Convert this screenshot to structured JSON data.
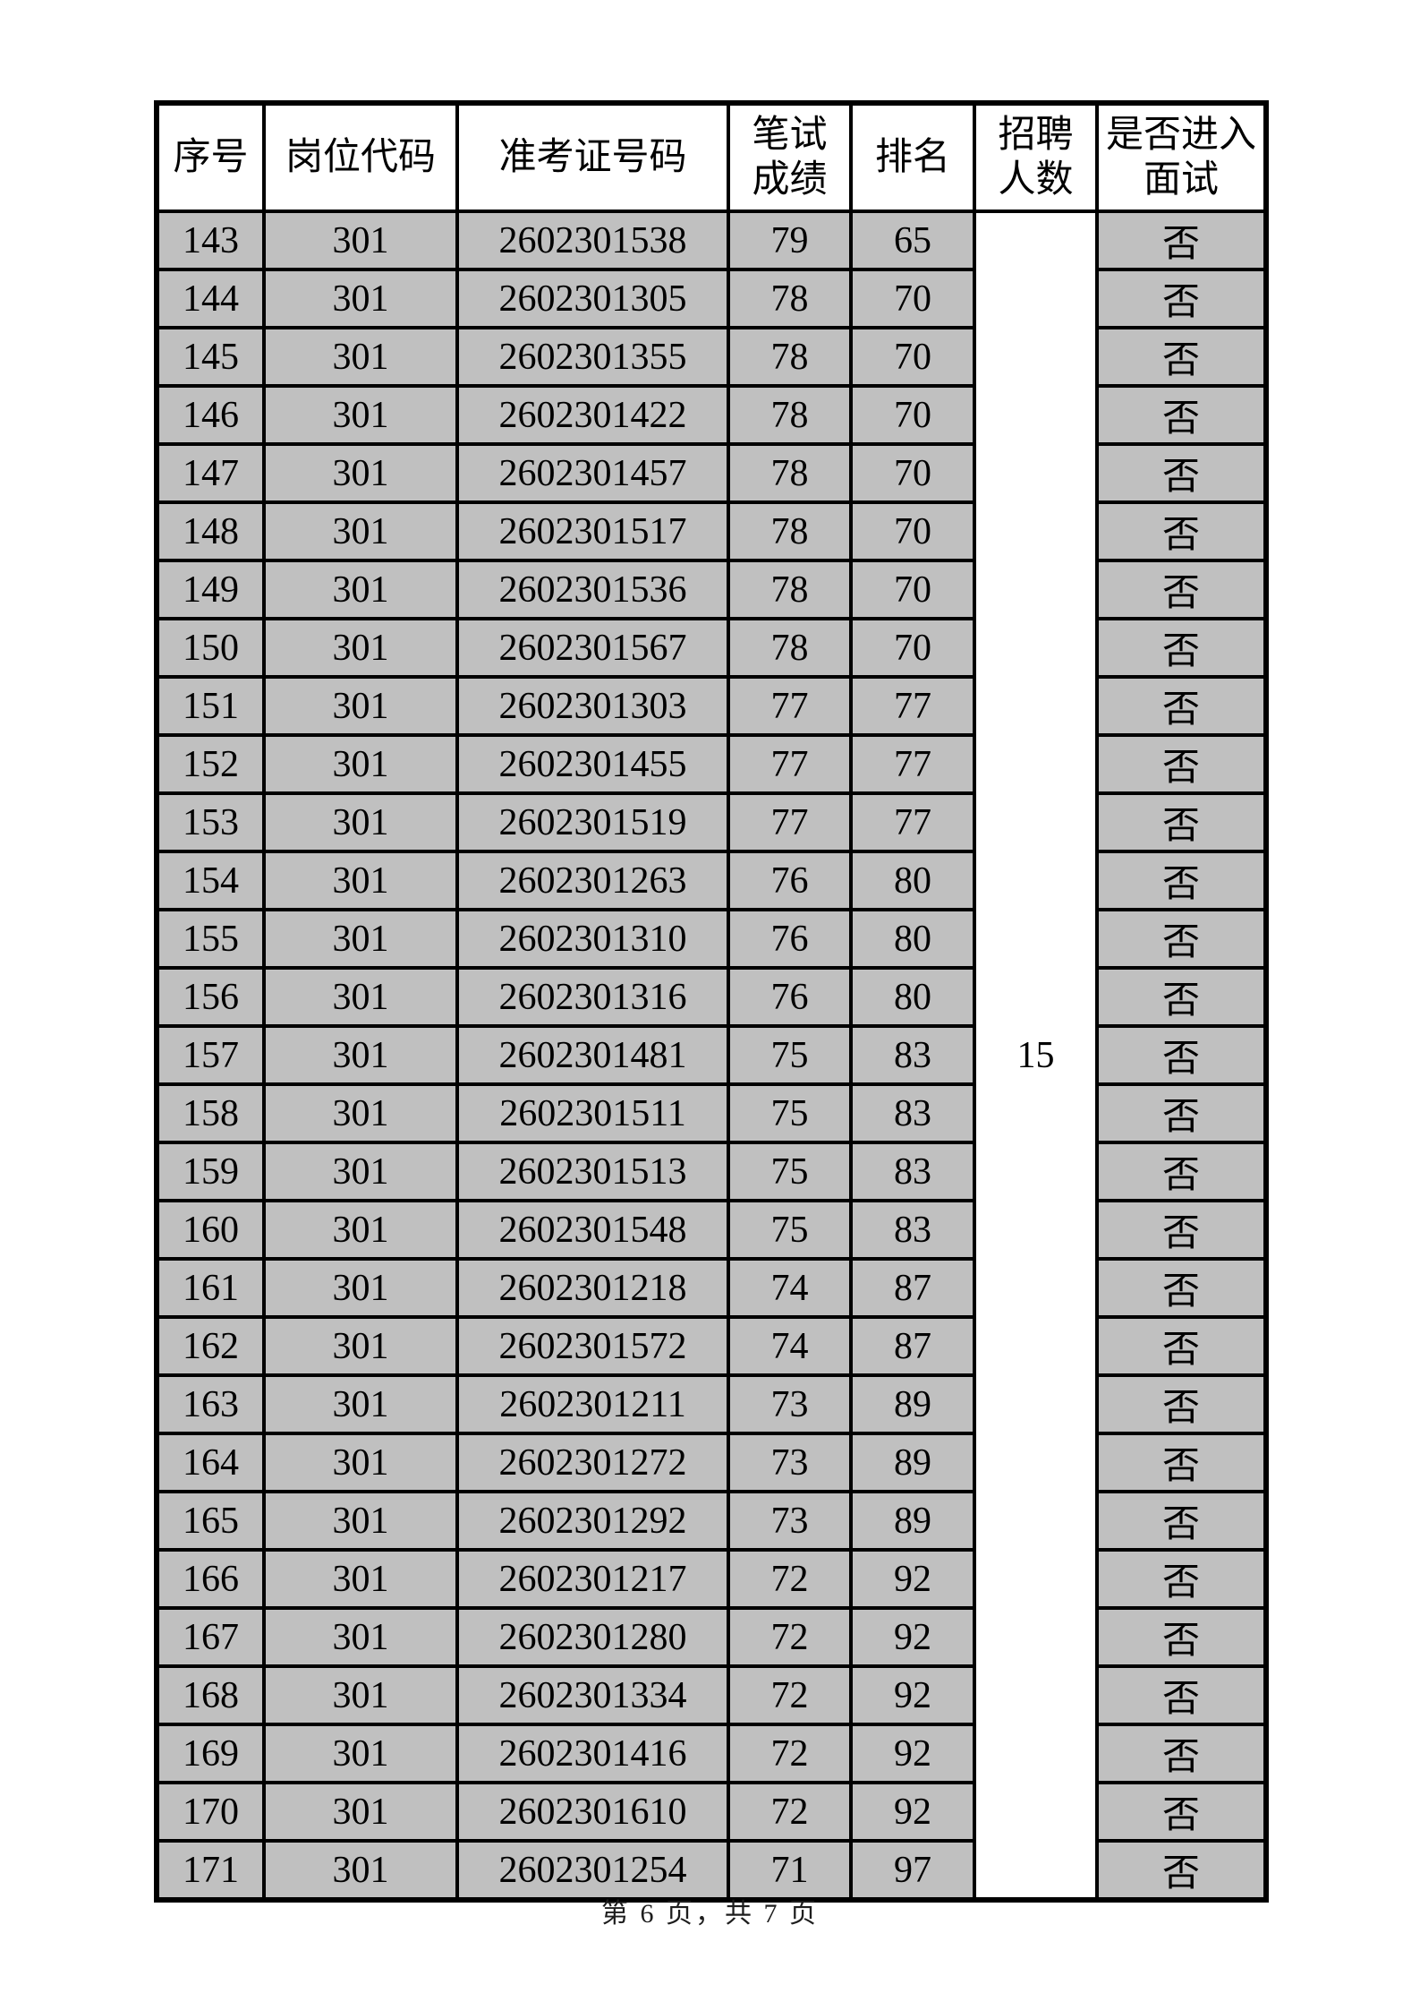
{
  "table": {
    "headers": [
      "序号",
      "岗位代码",
      "准考证号码",
      "笔试\n成绩",
      "排名",
      "招聘\n人数",
      "是否进入\n面试"
    ],
    "recruit_count": "15",
    "rows": [
      {
        "no": "143",
        "code": "301",
        "ticket": "2602301538",
        "score": "79",
        "rank": "65",
        "interview": "否"
      },
      {
        "no": "144",
        "code": "301",
        "ticket": "2602301305",
        "score": "78",
        "rank": "70",
        "interview": "否"
      },
      {
        "no": "145",
        "code": "301",
        "ticket": "2602301355",
        "score": "78",
        "rank": "70",
        "interview": "否"
      },
      {
        "no": "146",
        "code": "301",
        "ticket": "2602301422",
        "score": "78",
        "rank": "70",
        "interview": "否"
      },
      {
        "no": "147",
        "code": "301",
        "ticket": "2602301457",
        "score": "78",
        "rank": "70",
        "interview": "否"
      },
      {
        "no": "148",
        "code": "301",
        "ticket": "2602301517",
        "score": "78",
        "rank": "70",
        "interview": "否"
      },
      {
        "no": "149",
        "code": "301",
        "ticket": "2602301536",
        "score": "78",
        "rank": "70",
        "interview": "否"
      },
      {
        "no": "150",
        "code": "301",
        "ticket": "2602301567",
        "score": "78",
        "rank": "70",
        "interview": "否"
      },
      {
        "no": "151",
        "code": "301",
        "ticket": "2602301303",
        "score": "77",
        "rank": "77",
        "interview": "否"
      },
      {
        "no": "152",
        "code": "301",
        "ticket": "2602301455",
        "score": "77",
        "rank": "77",
        "interview": "否"
      },
      {
        "no": "153",
        "code": "301",
        "ticket": "2602301519",
        "score": "77",
        "rank": "77",
        "interview": "否"
      },
      {
        "no": "154",
        "code": "301",
        "ticket": "2602301263",
        "score": "76",
        "rank": "80",
        "interview": "否"
      },
      {
        "no": "155",
        "code": "301",
        "ticket": "2602301310",
        "score": "76",
        "rank": "80",
        "interview": "否"
      },
      {
        "no": "156",
        "code": "301",
        "ticket": "2602301316",
        "score": "76",
        "rank": "80",
        "interview": "否"
      },
      {
        "no": "157",
        "code": "301",
        "ticket": "2602301481",
        "score": "75",
        "rank": "83",
        "interview": "否"
      },
      {
        "no": "158",
        "code": "301",
        "ticket": "2602301511",
        "score": "75",
        "rank": "83",
        "interview": "否"
      },
      {
        "no": "159",
        "code": "301",
        "ticket": "2602301513",
        "score": "75",
        "rank": "83",
        "interview": "否"
      },
      {
        "no": "160",
        "code": "301",
        "ticket": "2602301548",
        "score": "75",
        "rank": "83",
        "interview": "否"
      },
      {
        "no": "161",
        "code": "301",
        "ticket": "2602301218",
        "score": "74",
        "rank": "87",
        "interview": "否"
      },
      {
        "no": "162",
        "code": "301",
        "ticket": "2602301572",
        "score": "74",
        "rank": "87",
        "interview": "否"
      },
      {
        "no": "163",
        "code": "301",
        "ticket": "2602301211",
        "score": "73",
        "rank": "89",
        "interview": "否"
      },
      {
        "no": "164",
        "code": "301",
        "ticket": "2602301272",
        "score": "73",
        "rank": "89",
        "interview": "否"
      },
      {
        "no": "165",
        "code": "301",
        "ticket": "2602301292",
        "score": "73",
        "rank": "89",
        "interview": "否"
      },
      {
        "no": "166",
        "code": "301",
        "ticket": "2602301217",
        "score": "72",
        "rank": "92",
        "interview": "否"
      },
      {
        "no": "167",
        "code": "301",
        "ticket": "2602301280",
        "score": "72",
        "rank": "92",
        "interview": "否"
      },
      {
        "no": "168",
        "code": "301",
        "ticket": "2602301334",
        "score": "72",
        "rank": "92",
        "interview": "否"
      },
      {
        "no": "169",
        "code": "301",
        "ticket": "2602301416",
        "score": "72",
        "rank": "92",
        "interview": "否"
      },
      {
        "no": "170",
        "code": "301",
        "ticket": "2602301610",
        "score": "72",
        "rank": "92",
        "interview": "否"
      },
      {
        "no": "171",
        "code": "301",
        "ticket": "2602301254",
        "score": "71",
        "rank": "97",
        "interview": "否"
      }
    ]
  },
  "footer": {
    "page_indicator": "第 6 页，共 7 页"
  },
  "colors": {
    "cell_bg": "#c0c0c0",
    "header_bg": "#ffffff",
    "border": "#000000"
  }
}
